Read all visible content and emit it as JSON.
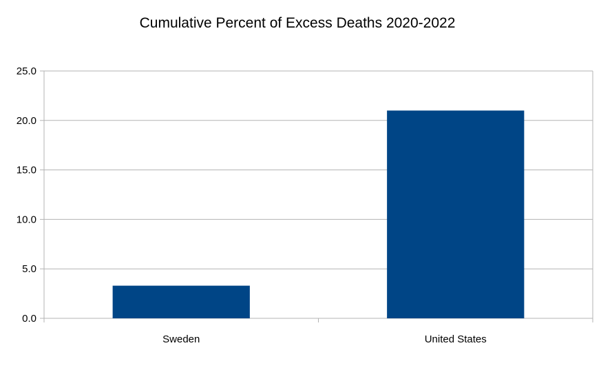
{
  "chart_data": {
    "type": "bar",
    "title": "Cumulative Percent of Excess Deaths 2020-2022",
    "xlabel": "",
    "ylabel": "",
    "categories": [
      "Sweden",
      "United States"
    ],
    "values": [
      3.3,
      21.0
    ],
    "ylim": [
      0,
      25
    ],
    "yticks": [
      "0.0",
      "5.0",
      "10.0",
      "15.0",
      "20.0",
      "25.0"
    ],
    "grid": true,
    "legend": "none",
    "bar_color": "#004586",
    "grid_color": "#b3b3b3"
  }
}
